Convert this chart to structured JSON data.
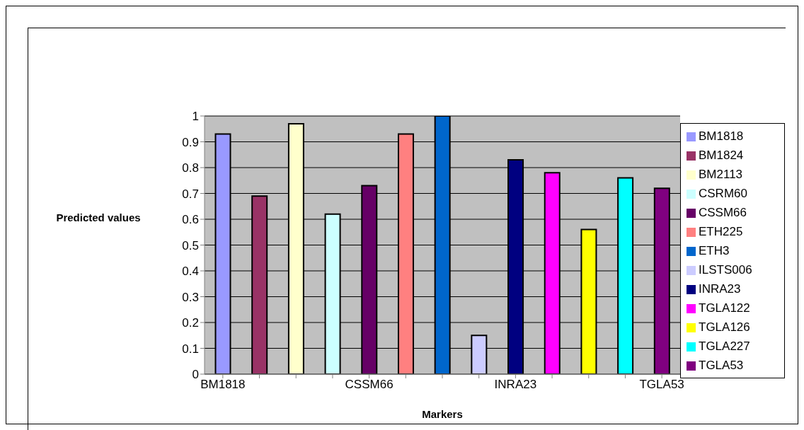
{
  "chart_data": {
    "type": "bar",
    "xlabel": "Markers",
    "ylabel": "Predicted values",
    "stacked": true,
    "categories": [
      "BM1818",
      null,
      null,
      null,
      "CSSM66",
      null,
      null,
      null,
      "INRA23",
      null,
      null,
      null,
      "TGLA53"
    ],
    "series": [
      {
        "name": "BM1818",
        "color": "#9999ff",
        "values": [
          0.93,
          null,
          null,
          null,
          null,
          null,
          null,
          null,
          null,
          null,
          null,
          null,
          null
        ]
      },
      {
        "name": "BM1824",
        "color": "#993366",
        "values": [
          null,
          0.69,
          null,
          null,
          null,
          null,
          null,
          null,
          null,
          null,
          null,
          null,
          null
        ]
      },
      {
        "name": "BM2113",
        "color": "#ffffcc",
        "values": [
          null,
          null,
          0.97,
          null,
          null,
          null,
          null,
          null,
          null,
          null,
          null,
          null,
          null
        ]
      },
      {
        "name": "CSRM60",
        "color": "#ccffff",
        "values": [
          null,
          null,
          null,
          0.62,
          null,
          null,
          null,
          null,
          null,
          null,
          null,
          null,
          null
        ]
      },
      {
        "name": "CSSM66",
        "color": "#660066",
        "values": [
          null,
          null,
          null,
          null,
          0.73,
          null,
          null,
          null,
          null,
          null,
          null,
          null,
          null
        ]
      },
      {
        "name": "ETH225",
        "color": "#ff8080",
        "values": [
          null,
          null,
          null,
          null,
          null,
          0.93,
          null,
          null,
          null,
          null,
          null,
          null,
          null
        ]
      },
      {
        "name": "ETH3",
        "color": "#0066cc",
        "values": [
          null,
          null,
          null,
          null,
          null,
          null,
          1.0,
          null,
          null,
          null,
          null,
          null,
          null
        ]
      },
      {
        "name": "ILSTS006",
        "color": "#ccccff",
        "values": [
          null,
          null,
          null,
          null,
          null,
          null,
          null,
          0.15,
          null,
          null,
          null,
          null,
          null
        ]
      },
      {
        "name": "INRA23",
        "color": "#000080",
        "values": [
          null,
          null,
          null,
          null,
          null,
          null,
          null,
          null,
          0.83,
          null,
          null,
          null,
          null
        ]
      },
      {
        "name": "TGLA122",
        "color": "#ff00ff",
        "values": [
          null,
          null,
          null,
          null,
          null,
          null,
          null,
          null,
          null,
          0.78,
          null,
          null,
          null
        ]
      },
      {
        "name": "TGLA126",
        "color": "#ffff00",
        "values": [
          null,
          null,
          null,
          null,
          null,
          null,
          null,
          null,
          null,
          null,
          0.56,
          null,
          null
        ]
      },
      {
        "name": "TGLA227",
        "color": "#00ffff",
        "values": [
          null,
          null,
          null,
          null,
          null,
          null,
          null,
          null,
          null,
          null,
          null,
          0.76,
          null
        ]
      },
      {
        "name": "TGLA53",
        "color": "#800080",
        "values": [
          null,
          null,
          null,
          null,
          null,
          null,
          null,
          null,
          null,
          null,
          null,
          null,
          0.72
        ]
      }
    ],
    "ylim": [
      0,
      1
    ],
    "yticks": [
      0,
      0.1,
      0.2,
      0.3,
      0.4,
      0.5,
      0.6,
      0.7,
      0.8,
      0.9,
      1
    ],
    "grid": "y",
    "legend": "right"
  }
}
